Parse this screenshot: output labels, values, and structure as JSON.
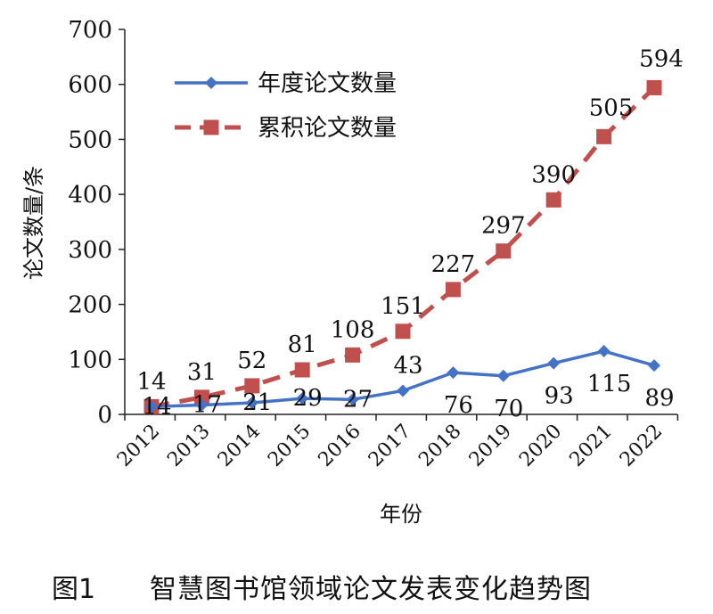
{
  "chart_data": {
    "type": "line",
    "categories": [
      "2012",
      "2013",
      "2014",
      "2015",
      "2016",
      "2017",
      "2018",
      "2019",
      "2020",
      "2021",
      "2022"
    ],
    "series": [
      {
        "name": "年度论文数量",
        "values": [
          14,
          17,
          21,
          29,
          27,
          43,
          76,
          70,
          93,
          115,
          89
        ],
        "color": "#4472C4",
        "marker": "diamond",
        "style": "solid"
      },
      {
        "name": "累积论文数量",
        "values": [
          14,
          31,
          52,
          81,
          108,
          151,
          227,
          297,
          390,
          505,
          594
        ],
        "color": "#C0504D",
        "marker": "square",
        "style": "dashed"
      }
    ],
    "xlabel": "年份",
    "ylabel": "论文数量/条",
    "ylim": [
      0,
      700
    ],
    "yticks": [
      "0",
      "100",
      "200",
      "300",
      "400",
      "500",
      "600",
      "700"
    ],
    "grid": false,
    "legend_position": "top-left"
  },
  "caption": {
    "number": "图1",
    "text": "智慧图书馆领域论文发表变化趋势图"
  }
}
